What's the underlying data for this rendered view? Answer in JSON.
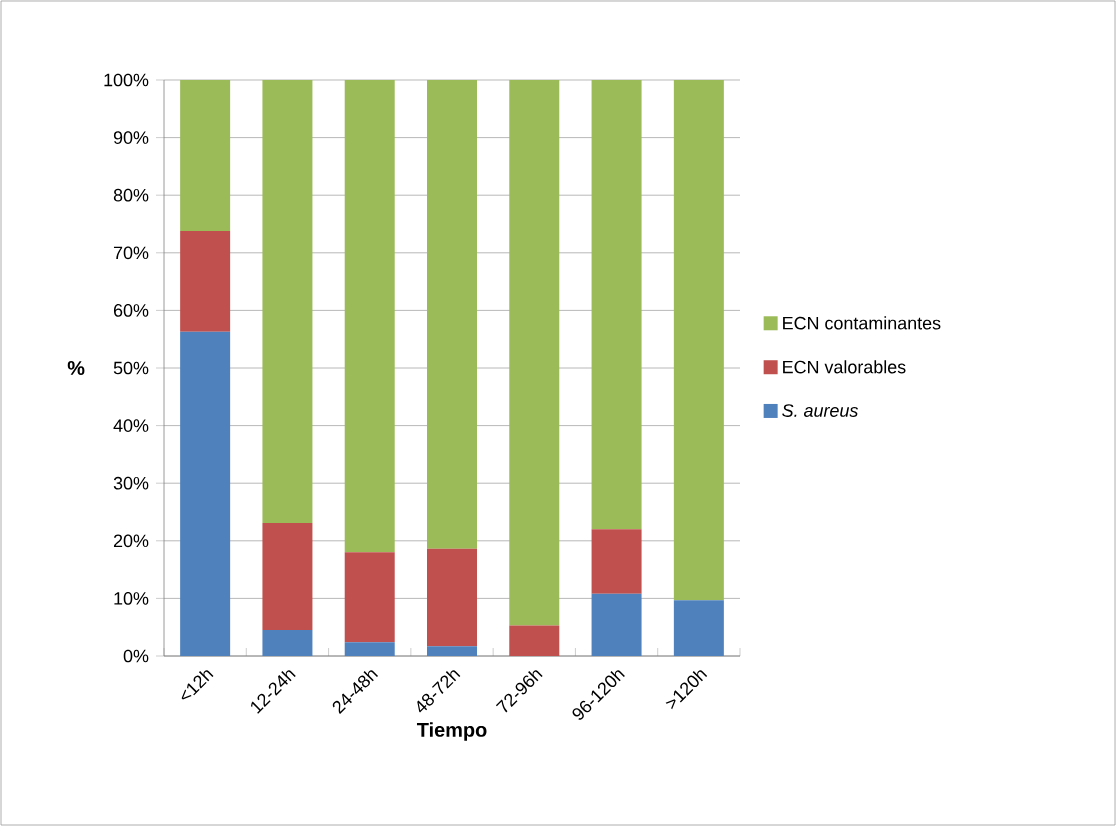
{
  "chart_data": {
    "type": "bar",
    "stacked": true,
    "xlabel": "Tiempo",
    "ylabel": "%",
    "categories": [
      "<12h",
      "12-24h",
      "24-48h",
      "48-72h",
      "72-96h",
      "96-120h",
      ">120h"
    ],
    "series": [
      {
        "name": "*S. aureus*",
        "color": "#4f81bd",
        "values": [
          56.3,
          4.5,
          2.4,
          1.7,
          0,
          10.8,
          9.7
        ]
      },
      {
        "name": "ECN valorables",
        "color": "#c0504d",
        "values": [
          17.5,
          18.6,
          15.6,
          16.9,
          5.3,
          11.2,
          0
        ]
      },
      {
        "name": "ECN contaminantes",
        "color": "#9bbb59",
        "values": [
          26.2,
          76.9,
          82.0,
          81.4,
          94.7,
          78.0,
          90.3
        ]
      }
    ],
    "ylim": [
      0,
      100
    ],
    "yticks": [
      {
        "value": 0,
        "label": "0%"
      },
      {
        "value": 10,
        "label": "10%"
      },
      {
        "value": 20,
        "label": "20%"
      },
      {
        "value": 30,
        "label": "30%"
      },
      {
        "value": 40,
        "label": "40%"
      },
      {
        "value": 50,
        "label": "50%"
      },
      {
        "value": 60,
        "label": "60%"
      },
      {
        "value": 70,
        "label": "70%"
      },
      {
        "value": 80,
        "label": "80%"
      },
      {
        "value": 90,
        "label": "90%"
      },
      {
        "value": 100,
        "label": "100%"
      }
    ],
    "grid": "y",
    "legend": "right"
  }
}
